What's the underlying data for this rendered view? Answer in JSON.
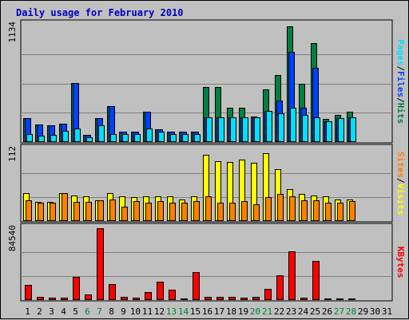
{
  "chart_data": {
    "type": "bar",
    "title": "Daily usage for February 2010",
    "colors": {
      "hits": "#008040",
      "files": "#0040ff",
      "pages": "#00e0ff",
      "visits": "#ffff00",
      "sites": "#ff8000",
      "kbytes": "#ff0000",
      "title": "#0000c0",
      "weekend": "#008040",
      "weekday": "#000000",
      "plot_bg": "#c0c0c0",
      "grid": "#808080"
    },
    "days": [
      "1",
      "2",
      "3",
      "4",
      "5",
      "6",
      "7",
      "8",
      "9",
      "10",
      "11",
      "12",
      "13",
      "14",
      "15",
      "16",
      "17",
      "18",
      "19",
      "20",
      "21",
      "22",
      "23",
      "24",
      "25",
      "26",
      "27",
      "28",
      "29",
      "30",
      "31"
    ],
    "weekend_days": [
      "6",
      "7",
      "13",
      "14",
      "20",
      "21",
      "27",
      "28"
    ],
    "panels": [
      {
        "id": "hits-files-pages",
        "ymax_label": "1134",
        "ymax": 1134,
        "right_label": [
          "Pages",
          "/",
          "Files",
          "/",
          "Hits"
        ],
        "right_label_colors": [
          "#00e0ff",
          "#000000",
          "#0040ff",
          "#000000",
          "#008040"
        ],
        "series": [
          {
            "name": "Hits",
            "color": "#008040",
            "values": [
              230,
              170,
              160,
              180,
              570,
              70,
              230,
              350,
              100,
              100,
              290,
              120,
              100,
              100,
              100,
              530,
              530,
              330,
              330,
              250,
              510,
              650,
              1120,
              560,
              960,
              220,
              260,
              290,
              0,
              0,
              0
            ]
          },
          {
            "name": "Files",
            "color": "#0040ff",
            "values": [
              230,
              170,
              160,
              180,
              570,
              70,
              230,
              350,
              100,
              100,
              290,
              120,
              100,
              100,
              100,
              240,
              240,
              240,
              240,
              240,
              300,
              400,
              870,
              330,
              720,
              200,
              230,
              240,
              0,
              0,
              0
            ]
          },
          {
            "name": "Pages",
            "color": "#00e0ff",
            "values": [
              80,
              60,
              70,
              110,
              130,
              50,
              160,
              80,
              80,
              80,
              130,
              100,
              80,
              80,
              80,
              240,
              240,
              240,
              240,
              240,
              300,
              280,
              330,
              260,
              240,
              200,
              230,
              240,
              0,
              0,
              0
            ]
          }
        ]
      },
      {
        "id": "visits-sites",
        "ymax_label": "112",
        "ymax": 112,
        "right_label": [
          "Sites",
          "/",
          "Visits"
        ],
        "right_label_colors": [
          "#ff8000",
          "#000000",
          "#ffff00"
        ],
        "series": [
          {
            "name": "Visits",
            "color": "#ffff00",
            "values": [
              43,
              30,
              30,
              44,
              40,
              38,
              32,
              43,
              38,
              37,
              38,
              38,
              38,
              34,
              39,
              103,
              93,
              92,
              96,
              91,
              106,
              81,
              50,
              42,
              40,
              38,
              33,
              33,
              0,
              0,
              0
            ]
          },
          {
            "name": "Sites",
            "color": "#ff8000",
            "values": [
              32,
              28,
              28,
              44,
              30,
              30,
              32,
              34,
              22,
              31,
              28,
              31,
              28,
              28,
              31,
              39,
              28,
              28,
              31,
              26,
              37,
              42,
              39,
              32,
              32,
              28,
              28,
              31,
              0,
              0,
              0
            ]
          }
        ]
      },
      {
        "id": "kbytes",
        "ymax_label": "84540",
        "ymax": 84540,
        "right_label": [
          "KBytes"
        ],
        "right_label_colors": [
          "#ff0000"
        ],
        "series": [
          {
            "name": "KBytes",
            "color": "#ff0000",
            "values": [
              17500,
              4000,
              3000,
              3000,
              27500,
              6500,
              84540,
              19000,
              4000,
              3000,
              9000,
              22000,
              12000,
              2000,
              33000,
              4000,
              4000,
              4000,
              3000,
              4000,
              13000,
              29000,
              57000,
              3000,
              46000,
              2000,
              2000,
              2000,
              0,
              0,
              0
            ]
          }
        ]
      }
    ]
  }
}
